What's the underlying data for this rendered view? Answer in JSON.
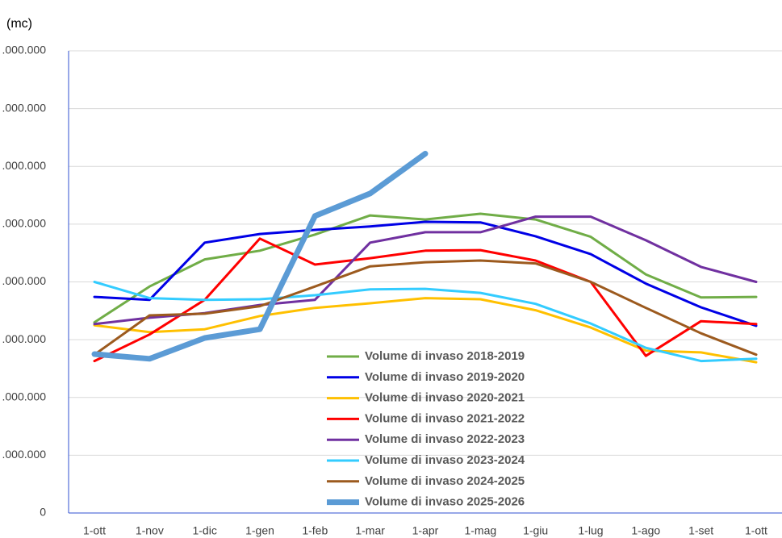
{
  "chart_data": {
    "type": "line",
    "y_label": "(mc)",
    "categories": [
      "1-ott",
      "1-nov",
      "1-dic",
      "1-gen",
      "1-feb",
      "1-mar",
      "1-apr",
      "1-mag",
      "1-giu",
      "1-lug",
      "1-ago",
      "1-set",
      "1-ott"
    ],
    "ylim": [
      0,
      8000000
    ],
    "yticks": [
      0,
      {
        "value": 1000000,
        "label": ".000.000"
      },
      {
        "value": 2000000,
        "label": ".000.000"
      },
      {
        "value": 3000000,
        "label": ".000.000"
      },
      {
        "value": 4000000,
        "label": ".000.000"
      },
      {
        "value": 5000000,
        "label": ".000.000"
      },
      {
        "value": 6000000,
        "label": ".000.000"
      },
      {
        "value": 7000000,
        "label": ".000.000"
      },
      {
        "value": 8000000,
        "label": ".000.000"
      }
    ],
    "grid": true,
    "series": [
      {
        "name": "Volume di invaso 2018-2019",
        "color": "#70ad47",
        "width": 3,
        "values": [
          3300000,
          3920000,
          4390000,
          4540000,
          4820000,
          5150000,
          5080000,
          5180000,
          5080000,
          4780000,
          4130000,
          3730000,
          3740000
        ]
      },
      {
        "name": "Volume di invaso 2019-2020",
        "color": "#0000e6",
        "width": 3,
        "values": [
          3740000,
          3690000,
          4680000,
          4830000,
          4900000,
          4960000,
          5040000,
          5030000,
          4790000,
          4480000,
          3970000,
          3560000,
          3240000
        ]
      },
      {
        "name": "Volume di invaso 2020-2021",
        "color": "#ffc000",
        "width": 3,
        "values": [
          3250000,
          3130000,
          3180000,
          3410000,
          3550000,
          3630000,
          3720000,
          3700000,
          3510000,
          3210000,
          2810000,
          2780000,
          2610000
        ]
      },
      {
        "name": "Volume di invaso 2021-2022",
        "color": "#ff0000",
        "width": 3,
        "values": [
          2630000,
          3090000,
          3690000,
          4750000,
          4300000,
          4410000,
          4540000,
          4550000,
          4370000,
          4000000,
          2720000,
          3320000,
          3270000
        ]
      },
      {
        "name": "Volume di invaso 2022-2023",
        "color": "#7030a0",
        "width": 3,
        "values": [
          3270000,
          3380000,
          3460000,
          3600000,
          3690000,
          4680000,
          4860000,
          4860000,
          5130000,
          5130000,
          4720000,
          4260000,
          4000000
        ]
      },
      {
        "name": "Volume di invaso 2023-2024",
        "color": "#33ccff",
        "width": 3,
        "values": [
          4000000,
          3720000,
          3690000,
          3700000,
          3770000,
          3870000,
          3880000,
          3810000,
          3620000,
          3280000,
          2860000,
          2630000,
          2670000
        ]
      },
      {
        "name": "Volume di invaso 2024-2025",
        "color": "#9c5a1e",
        "width": 3,
        "values": [
          2740000,
          3420000,
          3450000,
          3580000,
          3920000,
          4270000,
          4340000,
          4370000,
          4320000,
          4000000,
          3550000,
          3110000,
          2740000
        ]
      },
      {
        "name": "Volume di invaso 2025-2026",
        "color": "#5b9bd5",
        "width": 7,
        "values": [
          2750000,
          2670000,
          3030000,
          3180000,
          5140000,
          5530000,
          6220000,
          null,
          null,
          null,
          null,
          null,
          null
        ]
      }
    ]
  }
}
